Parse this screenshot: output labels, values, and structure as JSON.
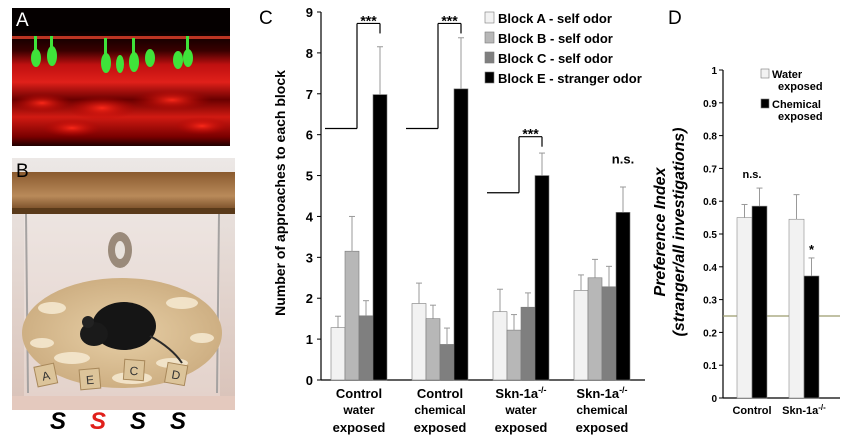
{
  "panels": {
    "a_label": "A",
    "b_label": "B",
    "c_label": "C",
    "d_label": "D"
  },
  "photo_b": {
    "box_letters": [
      "A",
      "E",
      "C",
      "D"
    ],
    "s_labels": [
      "S",
      "S",
      "S",
      "S"
    ],
    "s_colors": [
      "#000000",
      "#e0201b",
      "#000000",
      "#000000"
    ]
  },
  "colors": {
    "block_a": "#f2f2f2",
    "block_b": "#b7b7b7",
    "block_c": "#7f7f7f",
    "block_e": "#000000",
    "water": "#f2f2f2",
    "chemical": "#000000",
    "dashed_line": "#9c9c6e"
  },
  "chart_data": [
    {
      "type": "bar",
      "panel": "C",
      "ylabel": "Number of approaches to each block",
      "ylim": [
        0,
        9
      ],
      "yticks": [
        "0",
        "1",
        "2",
        "3",
        "4",
        "5",
        "6",
        "7",
        "8",
        "9"
      ],
      "groups": [
        {
          "line1": "Control",
          "line2": "water",
          "line3": "exposed"
        },
        {
          "line1": "Control",
          "line2": "chemical",
          "line3": "exposed"
        },
        {
          "line1": "Skn-1a",
          "sup": "-/-",
          "line2": "water",
          "line3": "exposed"
        },
        {
          "line1": "Skn-1a",
          "sup": "-/-",
          "line2": "chemical",
          "line3": "exposed"
        }
      ],
      "series": [
        {
          "name": "Block A - self odor",
          "values": [
            1.28,
            1.87,
            1.67,
            2.19
          ],
          "errors": [
            0.28,
            0.5,
            0.55,
            0.38
          ]
        },
        {
          "name": "Block B - self odor",
          "values": [
            3.15,
            1.5,
            1.22,
            2.5
          ],
          "errors": [
            0.85,
            0.33,
            0.38,
            0.45
          ]
        },
        {
          "name": "Block C - self odor",
          "values": [
            1.57,
            0.87,
            1.78,
            2.28
          ],
          "errors": [
            0.37,
            0.4,
            0.35,
            0.5
          ]
        },
        {
          "name": "Block E - stranger odor",
          "values": [
            6.98,
            7.12,
            5.0,
            4.1
          ],
          "errors": [
            1.17,
            1.25,
            0.55,
            0.62
          ]
        }
      ],
      "significance": [
        "***",
        "***",
        "***",
        "n.s."
      ]
    },
    {
      "type": "bar",
      "panel": "D",
      "ylabel_line1": "Preference Index",
      "ylabel_line2": "(stranger/all investigations)",
      "ylim": [
        0,
        1
      ],
      "yticks": [
        "0",
        "0.1",
        "0.2",
        "0.3",
        "0.4",
        "0.5",
        "0.6",
        "0.7",
        "0.8",
        "0.9",
        "1"
      ],
      "categories": [
        "Control",
        "Skn-1a"
      ],
      "category_sup": [
        "",
        "-/-"
      ],
      "series": [
        {
          "name_line1": "Water",
          "name_line2": "exposed",
          "values": [
            0.55,
            0.545
          ],
          "errors": [
            0.04,
            0.075
          ]
        },
        {
          "name_line1": "Chemical",
          "name_line2": "exposed",
          "values": [
            0.585,
            0.372
          ],
          "errors": [
            0.055,
            0.055
          ]
        }
      ],
      "reference_line": 0.25,
      "significance": [
        "n.s.",
        "*"
      ]
    }
  ]
}
